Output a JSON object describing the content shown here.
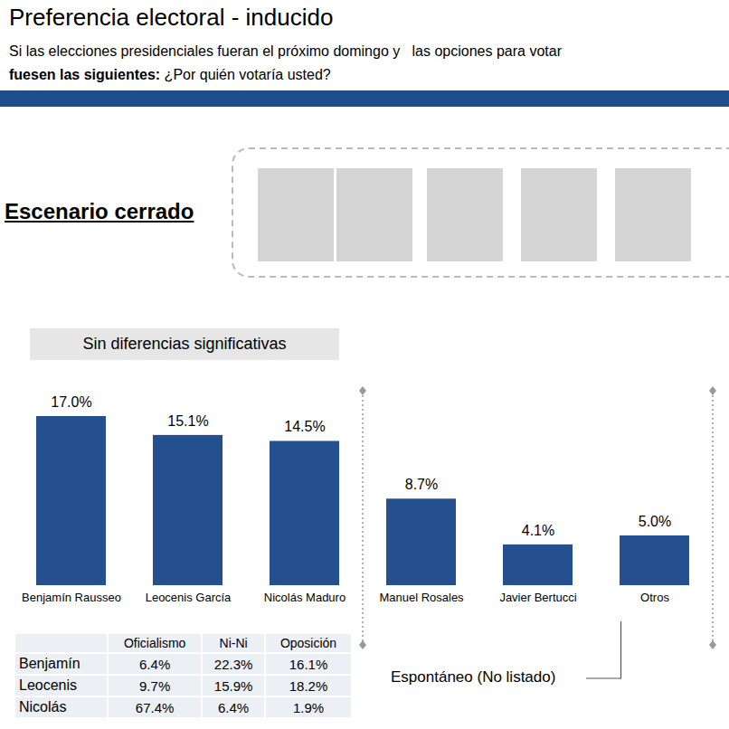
{
  "header": {
    "title": "Preferencia electoral - inducido",
    "subtitle": {
      "line1": "Si las elecciones presidenciales fueran el próximo domingo y   las opciones para votar",
      "line2_bold": "fuesen las siguientes:",
      "line2": " ¿Por quién votaría usted?"
    }
  },
  "scenario": {
    "label": "Escenario cerrado"
  },
  "chart_data": {
    "type": "bar",
    "title": "Sin diferencias significativas",
    "categories": [
      "Benjamín Rausseo",
      "Leocenis García",
      "Nicolás Maduro",
      "Manuel Rosales",
      "Javier Bertucci",
      "Otros"
    ],
    "values": [
      17.0,
      15.1,
      14.5,
      8.7,
      4.1,
      5.0
    ],
    "value_labels": [
      "17.0%",
      "15.1%",
      "14.5%",
      "8.7%",
      "4.1%",
      "5.0%"
    ],
    "color": "#24508f",
    "ylim": [
      0,
      17
    ],
    "data_labels": true,
    "tick_labels": "x",
    "grid": false
  },
  "annotation": {
    "text": "Espontáneo (No listado)",
    "target": "Otros"
  },
  "table": {
    "columns": [
      "Oficialismo",
      "Ni-Ni",
      "Oposición"
    ],
    "rows": [
      {
        "label": "Benjamín",
        "cells": [
          "6.4%",
          "22.3%",
          "16.1%"
        ]
      },
      {
        "label": "Leocenis",
        "cells": [
          "9.7%",
          "15.9%",
          "18.2%"
        ]
      },
      {
        "label": "Nicolás",
        "cells": [
          "67.4%",
          "6.4%",
          "1.9%"
        ]
      }
    ]
  }
}
